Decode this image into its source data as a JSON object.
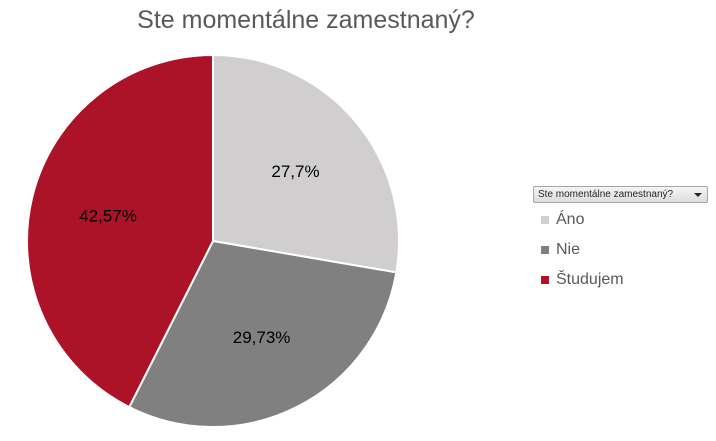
{
  "chart_data": {
    "type": "pie",
    "title": "Ste momentálne zamestnaný?",
    "legend_filter_label": "Ste momentálne zamestnaný?",
    "legend_position": "right",
    "categories": [
      "Áno",
      "Nie",
      "Študujem"
    ],
    "values": [
      27.7,
      29.73,
      42.57
    ],
    "data_labels": [
      "27,7%",
      "29,73%",
      "42,57%"
    ],
    "colors": [
      "#d0cecf",
      "#808080",
      "#ac1228"
    ],
    "start_angle_deg": 0,
    "direction": "clockwise"
  }
}
